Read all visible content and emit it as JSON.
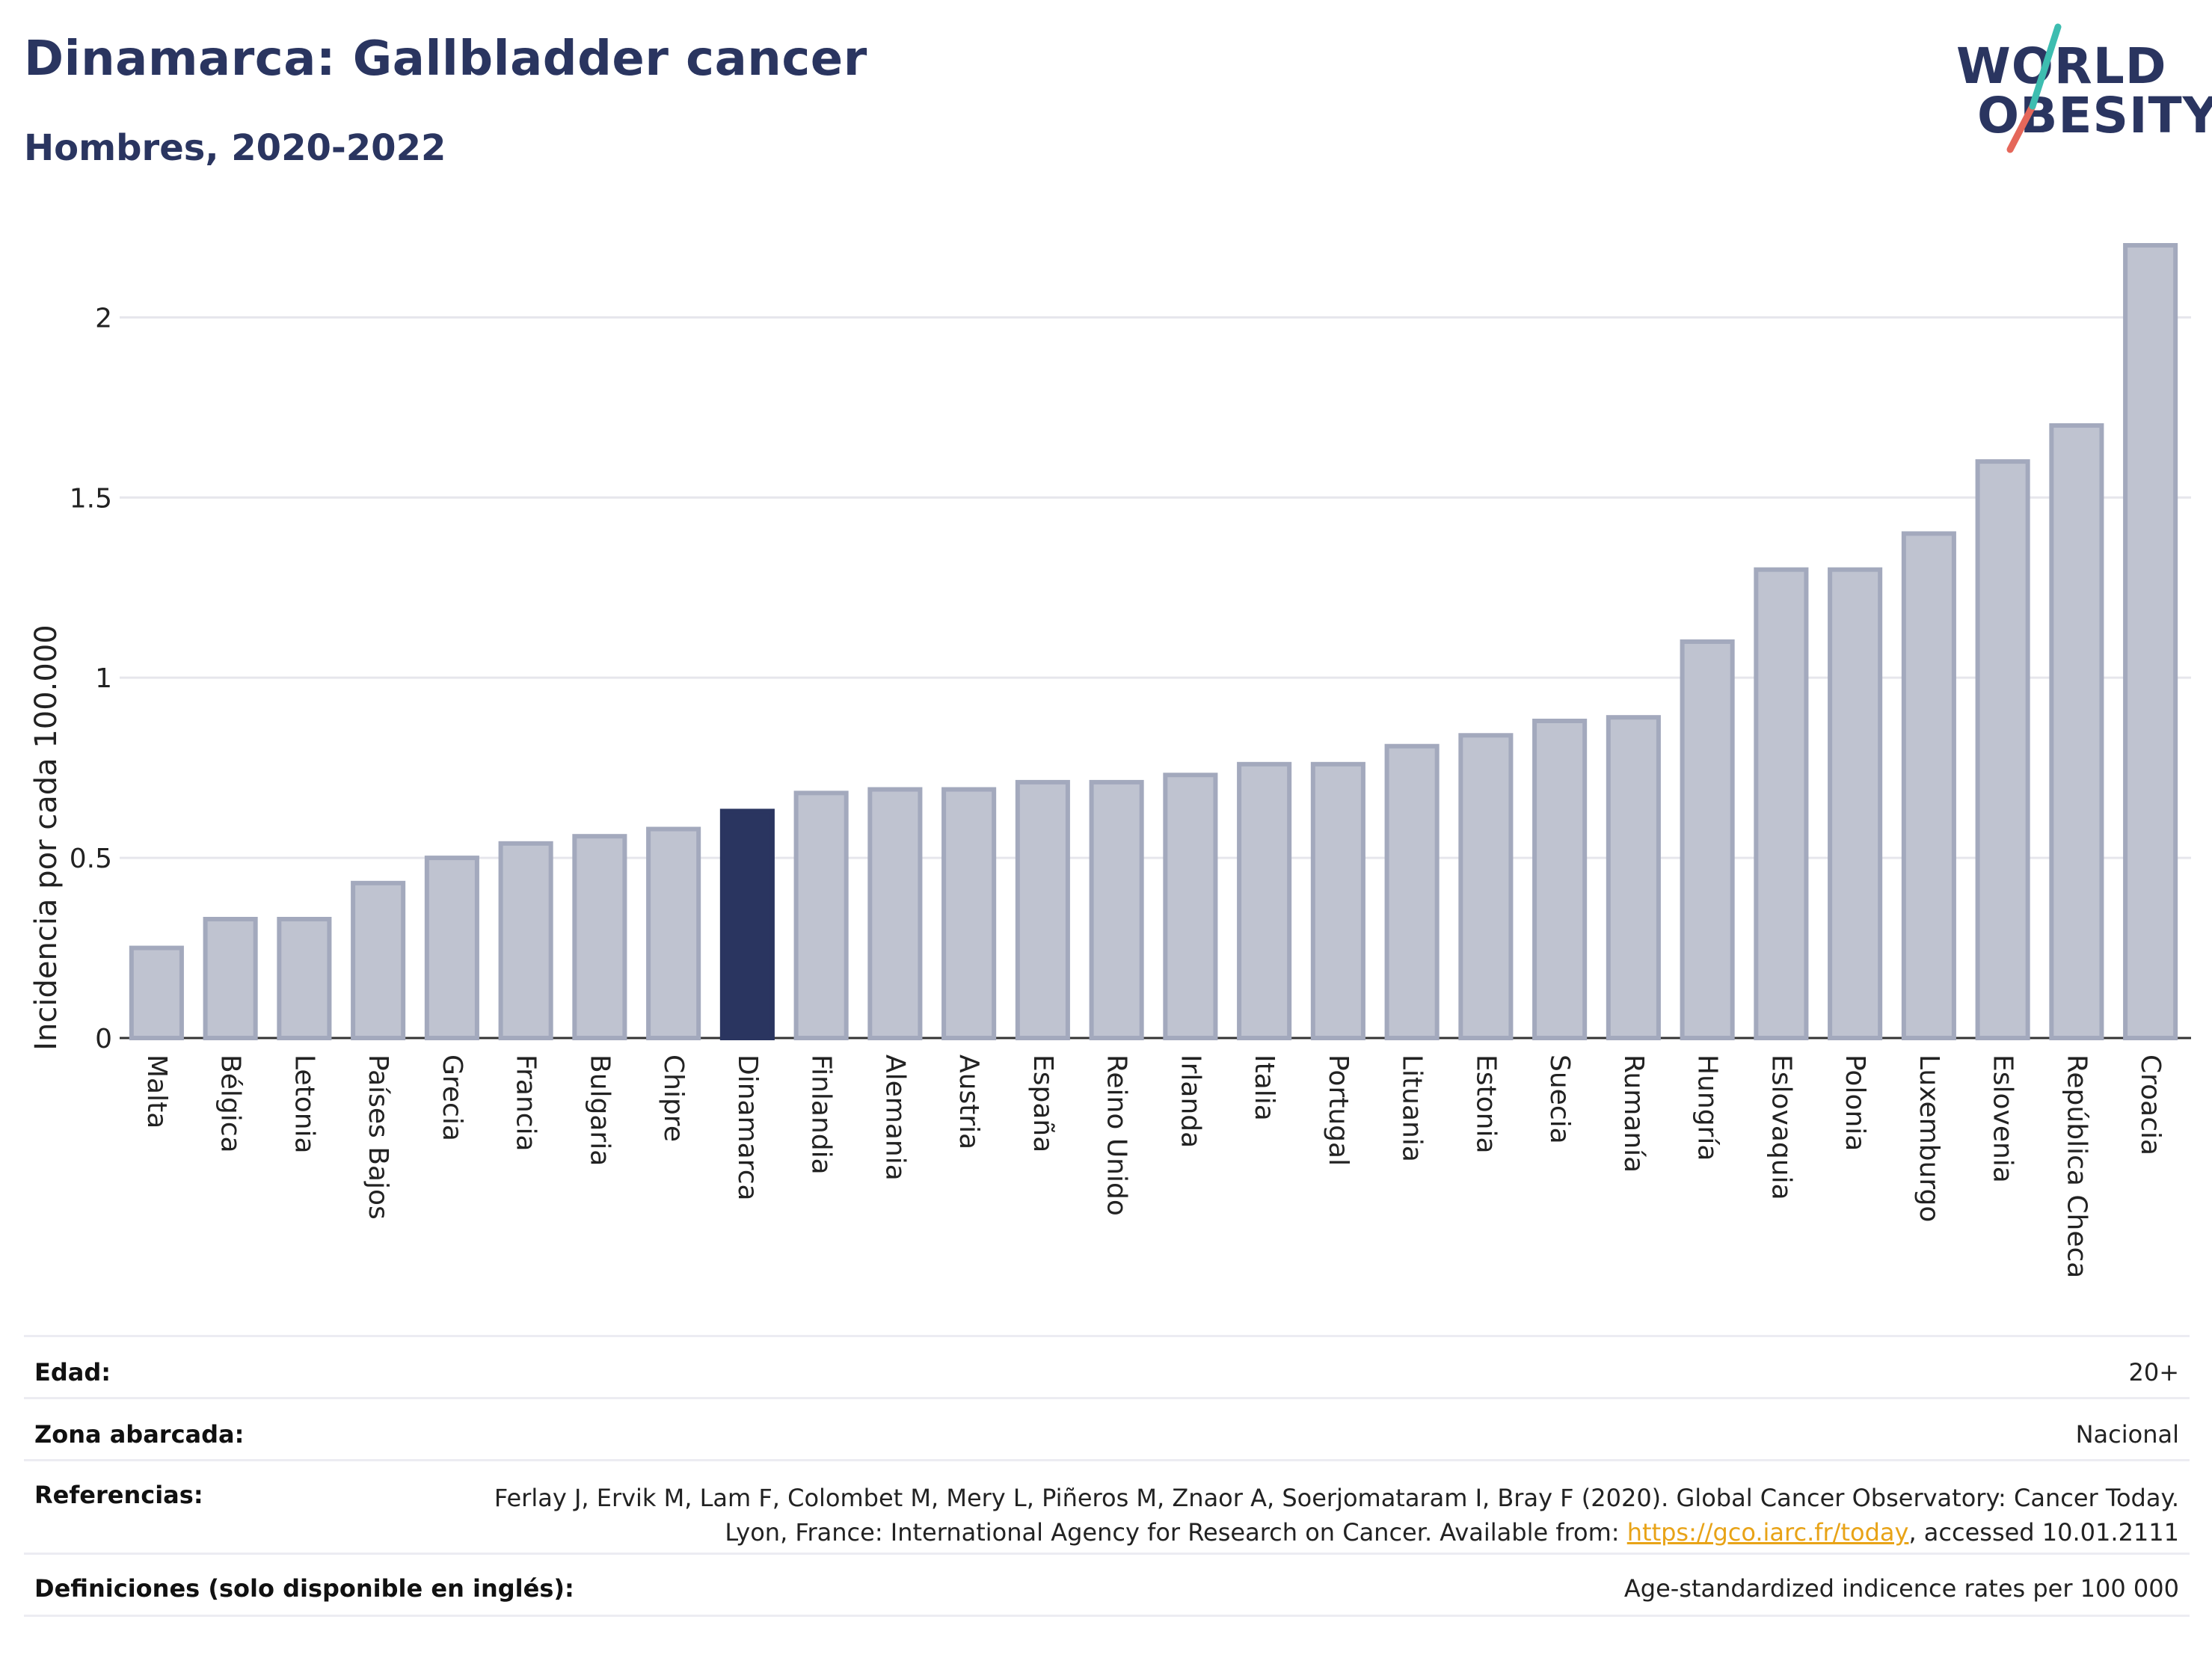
{
  "header": {
    "title": "Dinamarca: Gallbladder cancer",
    "subtitle": "Hombres, 2020-2022"
  },
  "logo": {
    "line1": "WORLD",
    "line2": "OBESITY"
  },
  "colors": {
    "bar": "#bfc3d0",
    "bar_border": "#a3a9bd",
    "highlight": "#2a3560",
    "grid": "#e6e6ec",
    "title": "#2a3560"
  },
  "chart_data": {
    "type": "bar",
    "ylabel": "Incidencia por cada 100.000",
    "xlabel": "",
    "ylim": [
      0,
      2.2
    ],
    "yticks": [
      0,
      0.5,
      1,
      1.5,
      2
    ],
    "ytick_labels": [
      "0",
      "0.5",
      "1",
      "1.5",
      "2"
    ],
    "highlight": "Dinamarca",
    "grid": true,
    "categories": [
      "Malta",
      "Bélgica",
      "Letonia",
      "Países Bajos",
      "Grecia",
      "Francia",
      "Bulgaria",
      "Chipre",
      "Dinamarca",
      "Finlandia",
      "Alemania",
      "Austria",
      "España",
      "Reino Unido",
      "Irlanda",
      "Italia",
      "Portugal",
      "Lituania",
      "Estonia",
      "Suecia",
      "Rumanía",
      "Hungría",
      "Eslovaquia",
      "Polonia",
      "Luxemburgo",
      "Eslovenia",
      "República Checa",
      "Croacia"
    ],
    "values": [
      0.25,
      0.33,
      0.33,
      0.43,
      0.5,
      0.54,
      0.56,
      0.58,
      0.63,
      0.68,
      0.69,
      0.69,
      0.71,
      0.71,
      0.73,
      0.76,
      0.76,
      0.81,
      0.84,
      0.88,
      0.89,
      1.1,
      1.3,
      1.3,
      1.4,
      1.6,
      1.7,
      2.2
    ]
  },
  "info": {
    "age_label": "Edad:",
    "age_value": "20+",
    "zone_label": "Zona abarcada:",
    "zone_value": "Nacional",
    "ref_label": "Referencias:",
    "ref_text_1": "Ferlay J, Ervik M, Lam F, Colombet M, Mery L, Piñeros M, Znaor A, Soerjomataram I, Bray F (2020). Global Cancer Observatory: Cancer Today. Lyon, France: International Agency for Research on Cancer. Available from: ",
    "ref_link": "https://gco.iarc.fr/today",
    "ref_text_2": ", accessed 10.01.2111",
    "def_label": "Definiciones (solo disponible en inglés):",
    "def_value": "Age-standardized indicence rates per 100 000"
  }
}
